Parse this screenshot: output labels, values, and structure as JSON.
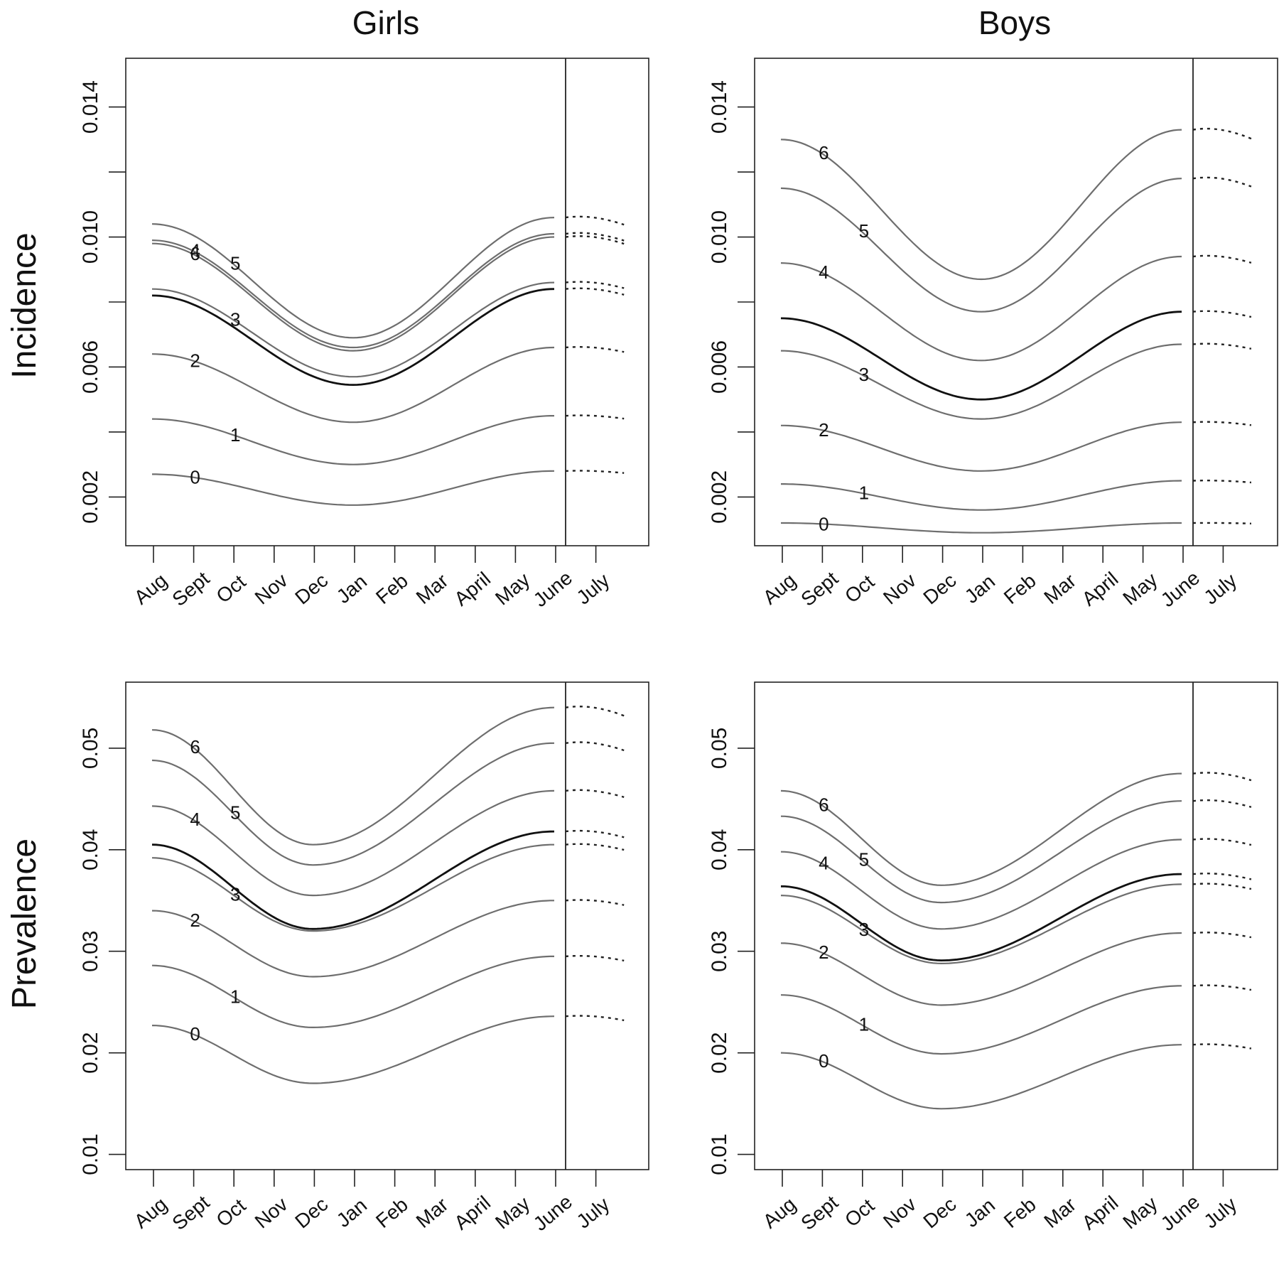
{
  "figure": {
    "column_titles": [
      "Girls",
      "Boys"
    ],
    "row_titles": [
      "Incidence",
      "Prevalence"
    ]
  },
  "chart_data": [
    {
      "type": "line",
      "panel": "Girls - Incidence",
      "x": [
        "Aug",
        "Sept",
        "Oct",
        "Nov",
        "Dec",
        "Jan",
        "Feb",
        "Mar",
        "April",
        "May",
        "June",
        "July"
      ],
      "ylim": [
        0.0005,
        0.0155
      ],
      "yticks": [
        0.002,
        0.004,
        0.006,
        0.008,
        0.01,
        0.012,
        0.014
      ],
      "ytick_labels": [
        "0.002",
        "",
        "0.006",
        "",
        "0.010",
        "",
        "0.014"
      ],
      "solid_range": [
        "Aug",
        "June"
      ],
      "dotted_range": [
        "June",
        "July"
      ],
      "vertical_line_at": "June",
      "series": [
        {
          "label": "0",
          "start": 0.0027,
          "min": 0.00175,
          "end": 0.0028,
          "min_month": "Jan"
        },
        {
          "label": "1",
          "start": 0.0044,
          "min": 0.003,
          "end": 0.0045,
          "min_month": "Jan"
        },
        {
          "label": "2",
          "start": 0.0064,
          "min": 0.0043,
          "end": 0.0066,
          "min_month": "Jan"
        },
        {
          "label": "3",
          "start": 0.0084,
          "min": 0.0057,
          "end": 0.0086,
          "min_month": "Jan"
        },
        {
          "label": "",
          "start": 0.0082,
          "min": 0.00545,
          "end": 0.0084,
          "min_month": "Jan",
          "emphasis": true
        },
        {
          "label": "6",
          "start": 0.0098,
          "min": 0.0065,
          "end": 0.01,
          "min_month": "Jan"
        },
        {
          "label": "4",
          "start": 0.0099,
          "min": 0.0066,
          "end": 0.0101,
          "min_month": "Jan"
        },
        {
          "label": "5",
          "start": 0.0104,
          "min": 0.0069,
          "end": 0.0106,
          "min_month": "Jan"
        }
      ],
      "line_label_positions": {
        "0": "Sept",
        "1": "Oct",
        "2": "Sept",
        "3": "Oct",
        "4": "Sept",
        "5": "Oct",
        "6": "Sept"
      }
    },
    {
      "type": "line",
      "panel": "Boys - Incidence",
      "x": [
        "Aug",
        "Sept",
        "Oct",
        "Nov",
        "Dec",
        "Jan",
        "Feb",
        "Mar",
        "April",
        "May",
        "June",
        "July"
      ],
      "ylim": [
        0.0005,
        0.0155
      ],
      "yticks": [
        0.002,
        0.004,
        0.006,
        0.008,
        0.01,
        0.012,
        0.014
      ],
      "ytick_labels": [
        "0.002",
        "",
        "0.006",
        "",
        "0.010",
        "",
        "0.014"
      ],
      "solid_range": [
        "Aug",
        "June"
      ],
      "dotted_range": [
        "June",
        "July"
      ],
      "vertical_line_at": "June",
      "series": [
        {
          "label": "0",
          "start": 0.0012,
          "min": 0.0009,
          "end": 0.0012,
          "min_month": "Jan"
        },
        {
          "label": "1",
          "start": 0.0024,
          "min": 0.0016,
          "end": 0.0025,
          "min_month": "Jan"
        },
        {
          "label": "2",
          "start": 0.0042,
          "min": 0.0028,
          "end": 0.0043,
          "min_month": "Jan"
        },
        {
          "label": "3",
          "start": 0.0065,
          "min": 0.0044,
          "end": 0.0067,
          "min_month": "Jan"
        },
        {
          "label": "",
          "start": 0.0075,
          "min": 0.005,
          "end": 0.0077,
          "min_month": "Jan",
          "emphasis": true
        },
        {
          "label": "4",
          "start": 0.0092,
          "min": 0.0062,
          "end": 0.0094,
          "min_month": "Jan"
        },
        {
          "label": "5",
          "start": 0.0115,
          "min": 0.0077,
          "end": 0.0118,
          "min_month": "Jan"
        },
        {
          "label": "6",
          "start": 0.013,
          "min": 0.0087,
          "end": 0.0133,
          "min_month": "Jan"
        }
      ],
      "line_label_positions": {
        "0": "Sept",
        "1": "Oct",
        "2": "Sept",
        "3": "Oct",
        "4": "Sept",
        "5": "Oct",
        "6": "Sept"
      }
    },
    {
      "type": "line",
      "panel": "Girls - Prevalence",
      "x": [
        "Aug",
        "Sept",
        "Oct",
        "Nov",
        "Dec",
        "Jan",
        "Feb",
        "Mar",
        "April",
        "May",
        "June",
        "July"
      ],
      "ylim": [
        0.0085,
        0.0565
      ],
      "yticks": [
        0.01,
        0.02,
        0.03,
        0.04,
        0.05
      ],
      "ytick_labels": [
        "0.01",
        "0.02",
        "0.03",
        "0.04",
        "0.05"
      ],
      "solid_range": [
        "Aug",
        "June"
      ],
      "dotted_range": [
        "June",
        "July"
      ],
      "vertical_line_at": "June",
      "series": [
        {
          "label": "0",
          "start": 0.0227,
          "min": 0.017,
          "end": 0.0236,
          "min_month": "Dec"
        },
        {
          "label": "1",
          "start": 0.0286,
          "min": 0.0225,
          "end": 0.0295,
          "min_month": "Dec"
        },
        {
          "label": "2",
          "start": 0.034,
          "min": 0.0275,
          "end": 0.035,
          "min_month": "Dec"
        },
        {
          "label": "3",
          "start": 0.0392,
          "min": 0.032,
          "end": 0.0405,
          "min_month": "Dec"
        },
        {
          "label": "",
          "start": 0.0405,
          "min": 0.0322,
          "end": 0.0418,
          "min_month": "Dec",
          "emphasis": true
        },
        {
          "label": "4",
          "start": 0.0443,
          "min": 0.0355,
          "end": 0.0458,
          "min_month": "Dec"
        },
        {
          "label": "5",
          "start": 0.0488,
          "min": 0.0385,
          "end": 0.0505,
          "min_month": "Dec"
        },
        {
          "label": "6",
          "start": 0.0518,
          "min": 0.0405,
          "end": 0.054,
          "min_month": "Dec"
        }
      ],
      "line_label_positions": {
        "0": "Sept",
        "1": "Oct",
        "2": "Sept",
        "3": "Oct",
        "4": "Sept",
        "5": "Oct",
        "6": "Sept"
      }
    },
    {
      "type": "line",
      "panel": "Boys - Prevalence",
      "x": [
        "Aug",
        "Sept",
        "Oct",
        "Nov",
        "Dec",
        "Jan",
        "Feb",
        "Mar",
        "April",
        "May",
        "June",
        "July"
      ],
      "ylim": [
        0.0085,
        0.0565
      ],
      "yticks": [
        0.01,
        0.02,
        0.03,
        0.04,
        0.05
      ],
      "ytick_labels": [
        "0.01",
        "0.02",
        "0.03",
        "0.04",
        "0.05"
      ],
      "solid_range": [
        "Aug",
        "June"
      ],
      "dotted_range": [
        "June",
        "July"
      ],
      "vertical_line_at": "June",
      "series": [
        {
          "label": "0",
          "start": 0.02,
          "min": 0.0145,
          "end": 0.0208,
          "min_month": "Dec"
        },
        {
          "label": "1",
          "start": 0.0257,
          "min": 0.0199,
          "end": 0.0266,
          "min_month": "Dec"
        },
        {
          "label": "2",
          "start": 0.0308,
          "min": 0.0247,
          "end": 0.0318,
          "min_month": "Dec"
        },
        {
          "label": "3",
          "start": 0.0355,
          "min": 0.0288,
          "end": 0.0366,
          "min_month": "Dec"
        },
        {
          "label": "",
          "start": 0.0364,
          "min": 0.0291,
          "end": 0.0376,
          "min_month": "Dec",
          "emphasis": true
        },
        {
          "label": "4",
          "start": 0.0398,
          "min": 0.0322,
          "end": 0.041,
          "min_month": "Dec"
        },
        {
          "label": "5",
          "start": 0.0433,
          "min": 0.0348,
          "end": 0.0448,
          "min_month": "Dec"
        },
        {
          "label": "6",
          "start": 0.0458,
          "min": 0.0365,
          "end": 0.0475,
          "min_month": "Dec"
        }
      ],
      "line_label_positions": {
        "0": "Sept",
        "1": "Oct",
        "2": "Sept",
        "3": "Oct",
        "4": "Sept",
        "5": "Oct",
        "6": "Sept"
      }
    }
  ]
}
